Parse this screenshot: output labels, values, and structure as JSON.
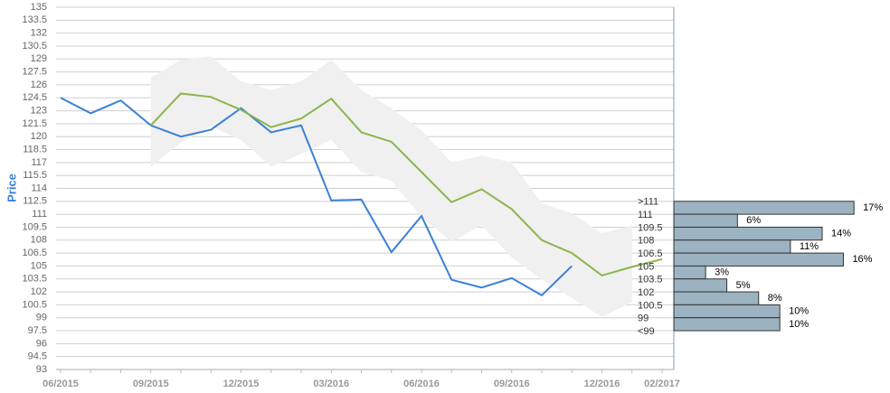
{
  "chart_data": [
    {
      "type": "line",
      "ylabel": "Price",
      "categories": [
        "06/2015",
        null,
        null,
        "09/2015",
        null,
        null,
        "12/2015",
        null,
        null,
        "03/2016",
        null,
        null,
        "06/2016",
        null,
        null,
        "09/2016",
        null,
        null,
        "12/2016",
        null,
        "02/2017"
      ],
      "series": [
        {
          "color": "#3a80d6",
          "values": [
            124.5,
            122.7,
            124.2,
            121.3,
            120.0,
            120.8,
            123.3,
            120.5,
            121.3,
            112.6,
            112.7,
            106.6,
            110.8,
            103.4,
            102.5,
            103.6,
            101.6,
            105.0,
            null,
            null,
            null
          ]
        },
        {
          "color": "#8cb54b",
          "values": [
            null,
            null,
            null,
            121.3,
            125.0,
            124.6,
            123.1,
            121.1,
            122.1,
            124.4,
            120.5,
            119.4,
            115.9,
            112.4,
            113.9,
            111.6,
            108.0,
            106.5,
            103.9,
            104.9,
            105.8
          ]
        }
      ],
      "band": {
        "color": "#f0f0f0",
        "upper": [
          null,
          null,
          null,
          126.8,
          128.9,
          129.3,
          126.4,
          125.4,
          126.4,
          128.9,
          125.4,
          123.3,
          120.7,
          117.0,
          117.8,
          117.0,
          112.3,
          111.1,
          108.8,
          109.7,
          null
        ],
        "lower": [
          null,
          null,
          null,
          116.5,
          119.3,
          121.2,
          119.6,
          116.5,
          118.0,
          119.6,
          115.9,
          114.9,
          110.7,
          107.8,
          109.7,
          106.0,
          103.4,
          101.3,
          99.1,
          100.8,
          null
        ]
      },
      "ylim": [
        93,
        135
      ],
      "yticks": [
        93,
        94.5,
        96,
        97.5,
        99,
        100.5,
        102,
        103.5,
        105,
        106.5,
        108,
        109.5,
        111,
        112.5,
        114,
        115.5,
        117,
        118.5,
        120,
        121.5,
        123,
        124.5,
        126,
        127.5,
        129,
        130.5,
        132,
        133.5,
        135
      ],
      "grid": true
    },
    {
      "type": "histogram",
      "color": "#9cb3c2",
      "bins": [
        112.5,
        111,
        109.5,
        108,
        106.5,
        105,
        103.5,
        102,
        100.5,
        99,
        97.5
      ],
      "bin_labels": [
        ">111",
        "111",
        "109.5",
        "108",
        "106.5",
        "105",
        "103.5",
        "102",
        "100.5",
        "99",
        "<99"
      ],
      "values": [
        17,
        6,
        14,
        11,
        16,
        3,
        5,
        8,
        10,
        10
      ],
      "value_labels": [
        "17%",
        "6%",
        "14%",
        "11%",
        "16%",
        "3%",
        "5%",
        "8%",
        "10%",
        "10%"
      ],
      "xlim": [
        0,
        20.4
      ]
    }
  ]
}
